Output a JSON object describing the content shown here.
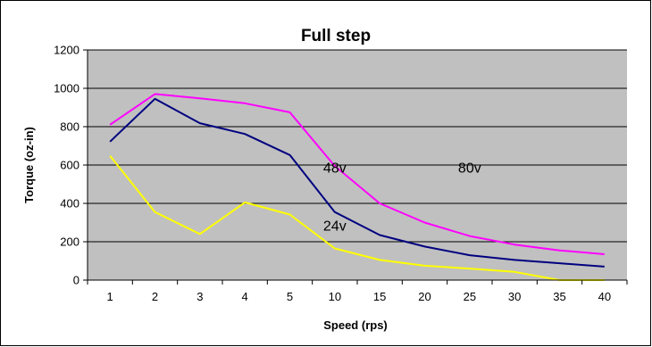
{
  "chart_data": {
    "type": "line",
    "title": "Full step",
    "xlabel": "Speed (rps)",
    "ylabel": "Torque (oz-in)",
    "categories": [
      "1",
      "2",
      "3",
      "4",
      "5",
      "10",
      "15",
      "20",
      "25",
      "30",
      "35",
      "40"
    ],
    "ylim": [
      0,
      1200
    ],
    "yticks": [
      0,
      200,
      400,
      600,
      800,
      1000,
      1200
    ],
    "grid": true,
    "legend": "none",
    "plot_background": "#c0c0c0",
    "series": [
      {
        "color": "#ff00ff",
        "values": [
          810,
          970,
          948,
          922,
          875,
          595,
          400,
          300,
          230,
          185,
          155,
          135
        ]
      },
      {
        "color": "#000080",
        "values": [
          722,
          945,
          818,
          762,
          652,
          355,
          235,
          175,
          130,
          105,
          88,
          70
        ]
      },
      {
        "color": "#ffff00",
        "values": [
          648,
          355,
          240,
          405,
          342,
          165,
          105,
          75,
          60,
          43,
          0,
          0
        ]
      }
    ],
    "annotations": [
      {
        "text": "48v",
        "x_category": "10",
        "y": 560
      },
      {
        "text": "80v",
        "x_category": "25",
        "y": 560
      },
      {
        "text": "24v",
        "x_category": "10",
        "y": 258
      }
    ]
  }
}
